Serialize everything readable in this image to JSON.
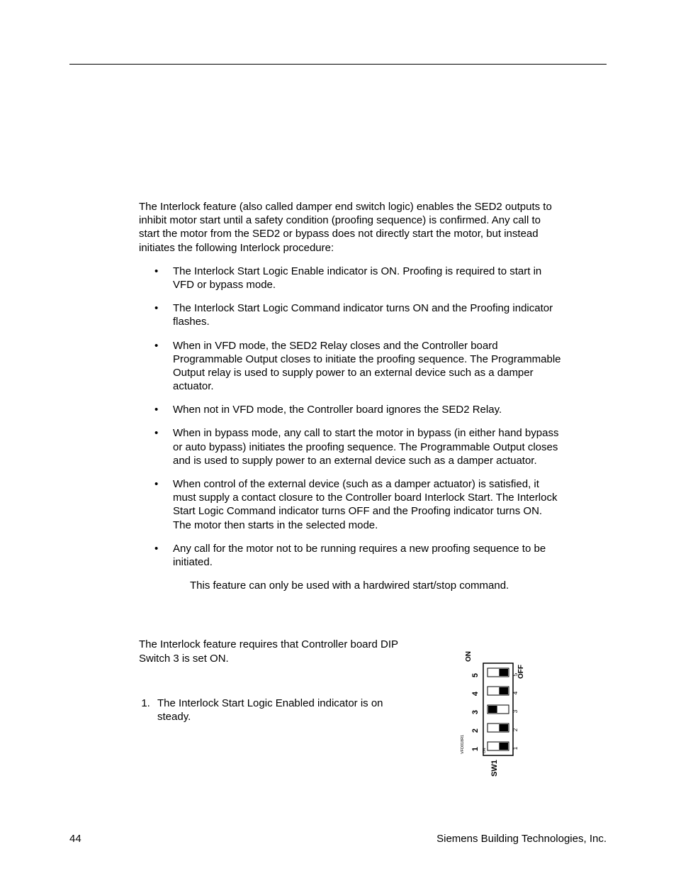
{
  "intro": "The Interlock feature (also called damper end switch logic) enables the SED2 outputs to inhibit motor start until a safety condition (proofing sequence) is confirmed. Any call to start the motor from the SED2 or bypass does not directly start the motor, but instead initiates the following Interlock procedure:",
  "bullets": [
    "The Interlock Start Logic Enable indicator is ON. Proofing is required to start in VFD or bypass mode.",
    "The Interlock Start Logic Command indicator turns ON and the Proofing indicator flashes.",
    "When in VFD mode, the SED2 Relay closes and the Controller board Programmable Output closes to initiate the proofing sequence. The Programmable Output relay is used to supply power to an external device such as a damper actuator.",
    "When not in VFD mode, the Controller board ignores the SED2 Relay.",
    "When in bypass mode, any call to start the motor in bypass (in either hand bypass or auto bypass) initiates the proofing sequence. The Programmable Output closes and is used to supply power to an external device such as a damper actuator.",
    "When control of the external device (such as a damper actuator) is satisfied, it must supply a contact closure to the Controller board Interlock Start. The Interlock Start Logic Command indicator turns OFF and the Proofing indicator turns ON. The motor then starts in the selected mode.",
    "Any call for the motor not to be running requires a new proofing sequence to be initiated."
  ],
  "note": "This feature can only be used with a hardwired start/stop command.",
  "setup_intro": "The Interlock feature requires that Controller board DIP Switch 3 is set ON.",
  "step1": "The Interlock Start Logic Enabled indicator is on steady.",
  "dip": {
    "label": "SW1",
    "on_label": "ON",
    "off_label": "OFF",
    "side_code": "VFD018R1",
    "numbers": [
      "1",
      "2",
      "3",
      "4",
      "5"
    ],
    "positions": [
      "off",
      "off",
      "on",
      "off",
      "off"
    ],
    "box_stroke": "#000000",
    "box_fill": "#ffffff",
    "switch_fill": "#000000",
    "font_size_pt": 9
  },
  "footer": {
    "page": "44",
    "company": "Siemens Building Technologies, Inc."
  }
}
